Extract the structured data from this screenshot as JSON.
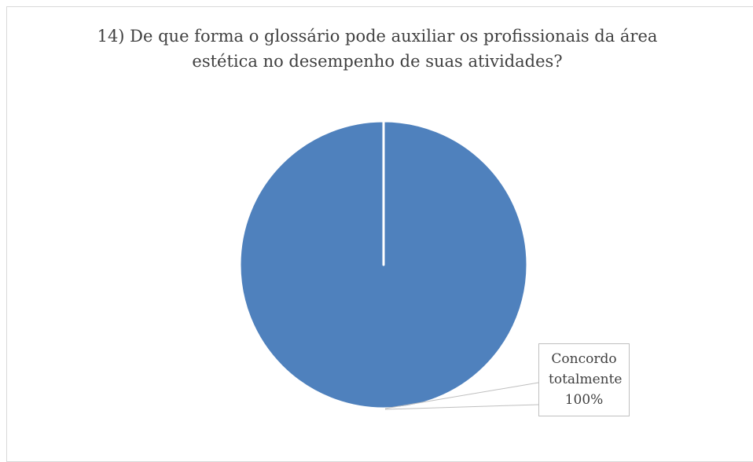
{
  "chart_data": {
    "type": "pie",
    "title": "14) De que forma o glossário pode auxiliar os profissionais da área estética no desempenho de suas atividades?",
    "categories": [
      "Concordo totalmente"
    ],
    "values": [
      100
    ],
    "value_labels": [
      "100%"
    ],
    "colors": [
      "#4f81bd"
    ]
  }
}
